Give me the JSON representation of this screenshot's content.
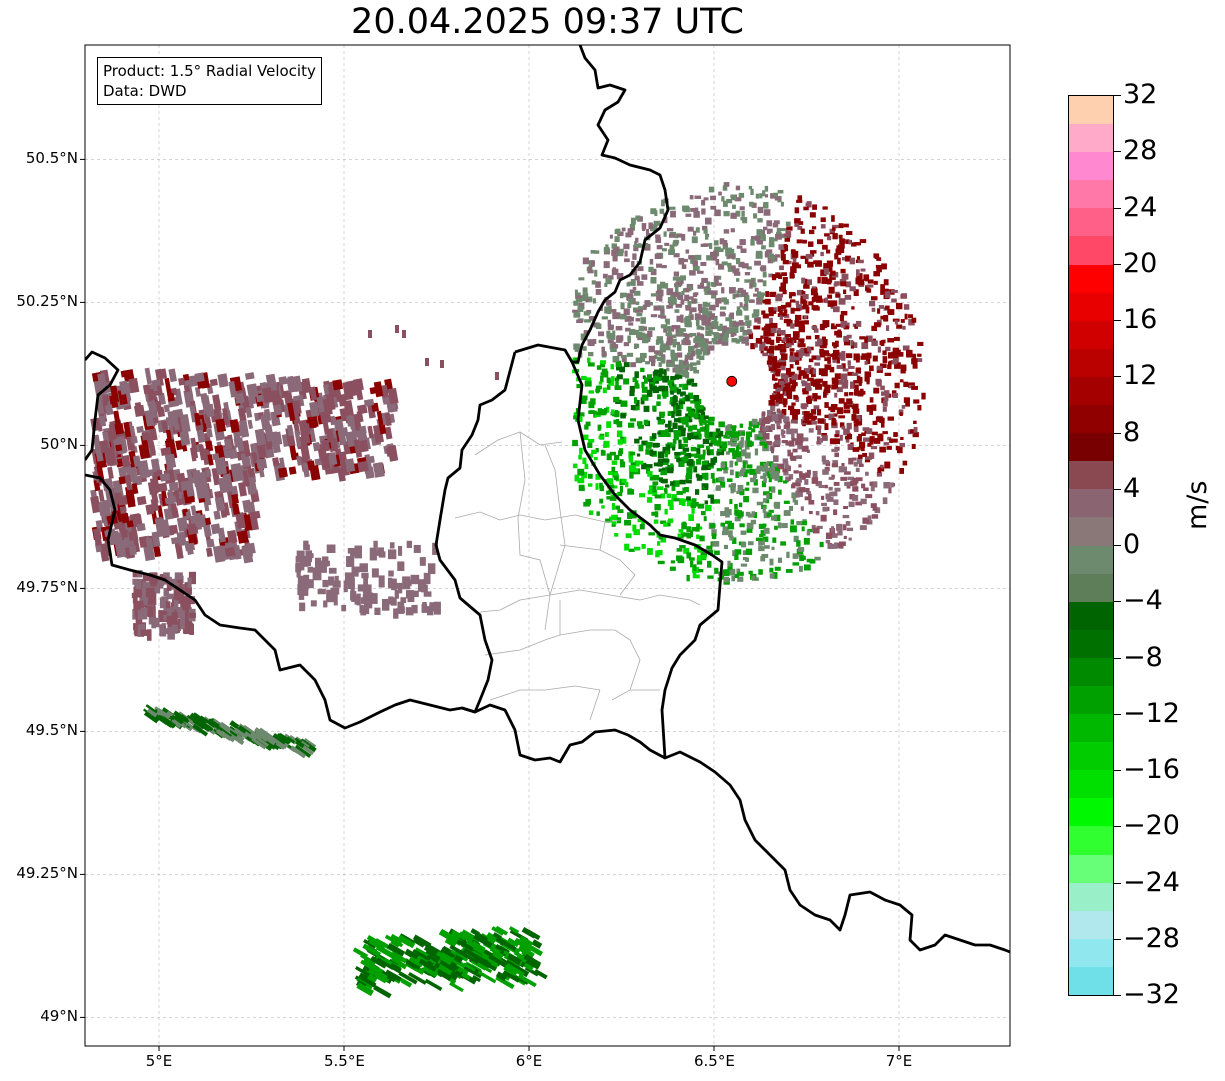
{
  "title": "20.04.2025 09:37 UTC",
  "info": {
    "product": "Product: 1.5° Radial Velocity",
    "data_source": "Data: DWD"
  },
  "axes": {
    "x_ticks": [
      "5°E",
      "5.5°E",
      "6°E",
      "6.5°E",
      "7°E"
    ],
    "y_ticks": [
      "50.5°N",
      "50.25°N",
      "50°N",
      "49.75°N",
      "49.5°N",
      "49.25°N",
      "49°N"
    ]
  },
  "colorbar": {
    "unit": "m/s",
    "min": -32,
    "max": 32,
    "tick_labels": [
      "32",
      "28",
      "24",
      "20",
      "16",
      "12",
      "8",
      "4",
      "0",
      "−4",
      "−8",
      "−12",
      "−16",
      "−20",
      "−24",
      "−28",
      "−32"
    ],
    "colors_top_to_bottom": [
      "#ffd0b0",
      "#ffaac8",
      "#ff88d0",
      "#ff78a8",
      "#ff6088",
      "#ff4868",
      "#ff0000",
      "#e80000",
      "#d00000",
      "#bb0000",
      "#a50000",
      "#900000",
      "#780000",
      "#8a4850",
      "#8a6470",
      "#8a7878",
      "#6e8a6e",
      "#5e7e5a",
      "#006400",
      "#007000",
      "#008a00",
      "#00a000",
      "#00b800",
      "#00cc00",
      "#00e000",
      "#00f800",
      "#30ff30",
      "#66ff77",
      "#99f0c8",
      "#b0e8ee",
      "#90e8ee",
      "#70e0e8"
    ]
  },
  "radar_site": {
    "lon": 6.548,
    "lat": 50.112,
    "color": "#ff0000"
  },
  "map_extent": {
    "lon_min": 4.8,
    "lon_max": 7.3,
    "lat_min": 48.95,
    "lat_max": 50.7
  },
  "echo_colors": {
    "red_dark": "#8b0000",
    "red_mid": "#7a1a1a",
    "mauve": "#8a5060",
    "mauve_light": "#8a6a78",
    "green_grey": "#5e7e5a",
    "green_light": "#6e8a6e",
    "green_dark": "#006400",
    "green_mid": "#00a000",
    "green_bright": "#00dd00"
  }
}
